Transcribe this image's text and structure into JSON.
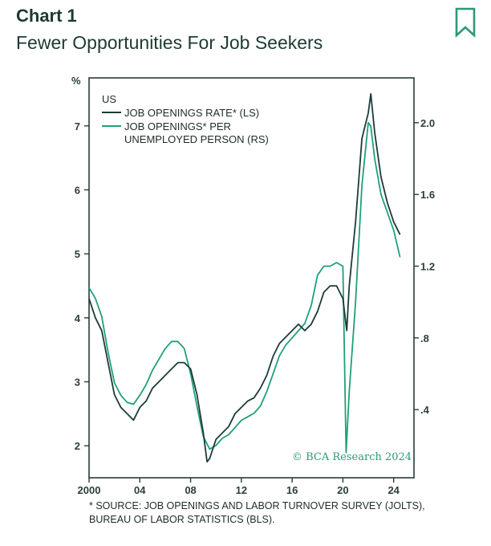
{
  "header": {
    "chart_label": "Chart 1",
    "chart_title": "Fewer Opportunities For Job Seekers"
  },
  "icons": {
    "bookmark": "bookmark-icon"
  },
  "colors": {
    "rate_line": "#1e3a3a",
    "ratio_line": "#1fa07a",
    "frame": "#2a3b38",
    "accent_text": "#2b9a78"
  },
  "footnote": {
    "line1": "* SOURCE: JOB OPENINGS AND LABOR TURNOVER SURVEY (JOLTS),",
    "line2": "BUREAU OF LABOR STATISTICS (BLS)."
  },
  "chart_data": {
    "type": "line",
    "region_label": "US",
    "watermark": "© BCA Research 2024",
    "left_axis": {
      "unit": "%",
      "range": [
        1.5,
        7.75
      ],
      "ticks": [
        2,
        3,
        4,
        5,
        6,
        7
      ]
    },
    "right_axis": {
      "range": [
        0.02,
        2.25
      ],
      "ticks": [
        0.4,
        0.8,
        1.2,
        1.6,
        2.0
      ],
      "tick_labels": [
        ".4",
        ".8",
        "1.2",
        "1.6",
        "2.0"
      ]
    },
    "x_axis": {
      "range": [
        2000,
        2025.6
      ],
      "ticks": [
        2000,
        2004,
        2008,
        2012,
        2016,
        2020,
        2024
      ],
      "tick_labels": [
        "2000",
        "04",
        "08",
        "12",
        "16",
        "20",
        "24"
      ]
    },
    "grid": false,
    "legend": {
      "placement": "top-left"
    },
    "series": [
      {
        "name": "JOB OPENINGS RATE* (LS)",
        "name_line2": "",
        "axis": "left",
        "x": [
          2000.0,
          2000.5,
          2001.0,
          2001.5,
          2002.0,
          2002.5,
          2003.0,
          2003.5,
          2004.0,
          2004.5,
          2005.0,
          2005.5,
          2006.0,
          2006.5,
          2007.0,
          2007.5,
          2008.0,
          2008.5,
          2009.0,
          2009.3,
          2009.5,
          2010.0,
          2010.5,
          2011.0,
          2011.5,
          2012.0,
          2012.5,
          2013.0,
          2013.5,
          2014.0,
          2014.5,
          2015.0,
          2015.5,
          2016.0,
          2016.5,
          2017.0,
          2017.5,
          2018.0,
          2018.5,
          2019.0,
          2019.5,
          2020.0,
          2020.3,
          2020.5,
          2021.0,
          2021.5,
          2022.0,
          2022.2,
          2022.5,
          2023.0,
          2023.5,
          2024.0,
          2024.5
        ],
        "values": [
          4.3,
          4.0,
          3.8,
          3.3,
          2.8,
          2.6,
          2.5,
          2.4,
          2.6,
          2.7,
          2.9,
          3.0,
          3.1,
          3.2,
          3.3,
          3.3,
          3.2,
          2.8,
          2.2,
          1.75,
          1.8,
          2.1,
          2.2,
          2.3,
          2.5,
          2.6,
          2.7,
          2.75,
          2.9,
          3.1,
          3.4,
          3.6,
          3.7,
          3.8,
          3.9,
          3.8,
          3.9,
          4.1,
          4.4,
          4.5,
          4.5,
          4.3,
          3.8,
          4.5,
          5.5,
          6.8,
          7.2,
          7.5,
          6.9,
          6.2,
          5.8,
          5.5,
          5.3
        ]
      },
      {
        "name": "JOB OPENINGS* PER",
        "name_line2": "UNEMPLOYED PERSON (RS)",
        "axis": "right",
        "x": [
          2000.0,
          2000.5,
          2001.0,
          2001.5,
          2002.0,
          2002.5,
          2003.0,
          2003.5,
          2004.0,
          2004.5,
          2005.0,
          2005.5,
          2006.0,
          2006.5,
          2007.0,
          2007.5,
          2008.0,
          2008.5,
          2009.0,
          2009.5,
          2010.0,
          2010.5,
          2011.0,
          2011.5,
          2012.0,
          2012.5,
          2013.0,
          2013.5,
          2014.0,
          2014.5,
          2015.0,
          2015.5,
          2016.0,
          2016.5,
          2017.0,
          2017.5,
          2018.0,
          2018.5,
          2019.0,
          2019.5,
          2020.0,
          2020.25,
          2020.5,
          2021.0,
          2021.5,
          2022.0,
          2022.2,
          2022.5,
          2023.0,
          2023.5,
          2024.0,
          2024.5
        ],
        "values": [
          1.08,
          1.02,
          0.92,
          0.72,
          0.55,
          0.48,
          0.44,
          0.43,
          0.48,
          0.54,
          0.62,
          0.68,
          0.74,
          0.78,
          0.78,
          0.74,
          0.6,
          0.42,
          0.25,
          0.18,
          0.2,
          0.24,
          0.26,
          0.3,
          0.34,
          0.36,
          0.38,
          0.42,
          0.5,
          0.6,
          0.7,
          0.76,
          0.8,
          0.84,
          0.88,
          0.98,
          1.15,
          1.2,
          1.2,
          1.22,
          1.2,
          0.16,
          0.5,
          1.0,
          1.65,
          2.0,
          1.98,
          1.8,
          1.6,
          1.5,
          1.4,
          1.25
        ]
      }
    ]
  }
}
